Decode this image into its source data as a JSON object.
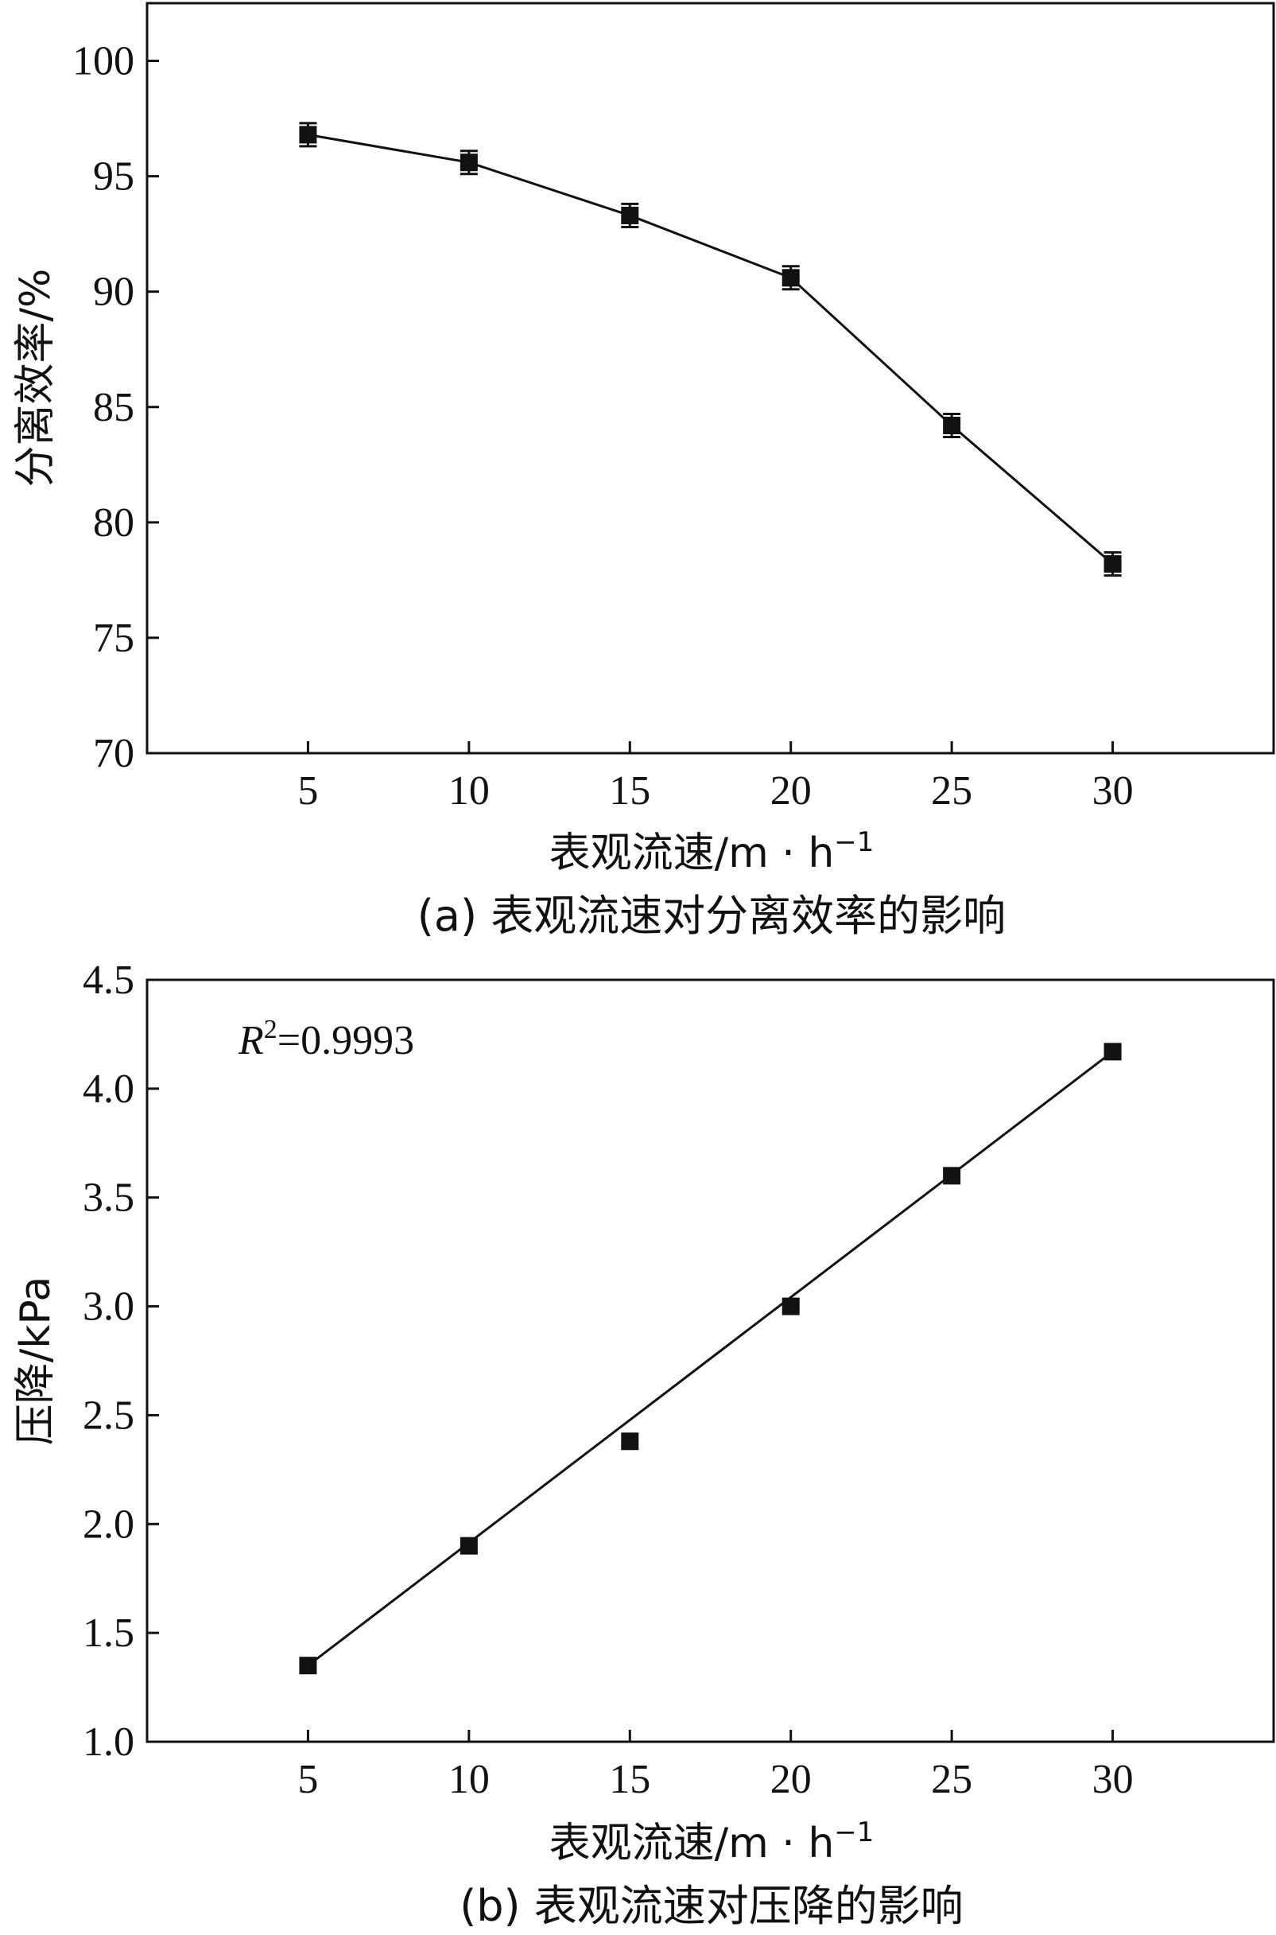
{
  "chart_data": [
    {
      "type": "line",
      "panel": "a",
      "caption": "(a) 表观流速对分离效率的影响",
      "xlabel": "表观流速/m · h",
      "xlabel_superscript": "−1",
      "ylabel": "分离效率/%",
      "xlim": [
        0,
        35
      ],
      "ylim": [
        70,
        102.5
      ],
      "xticks": [
        5,
        10,
        15,
        20,
        25,
        30
      ],
      "yticks": [
        70,
        75,
        80,
        85,
        90,
        95,
        100
      ],
      "grid": false,
      "marker": "square",
      "error_bars": true,
      "series": [
        {
          "x": [
            5,
            10,
            15,
            20,
            25,
            30
          ],
          "values": [
            96.8,
            95.6,
            93.3,
            90.6,
            84.2,
            78.2
          ],
          "errors": [
            0.5,
            0.5,
            0.5,
            0.5,
            0.5,
            0.5
          ]
        }
      ]
    },
    {
      "type": "scatter",
      "panel": "b",
      "caption": "(b) 表观流速对压降的影响",
      "xlabel": "表观流速/m · h",
      "xlabel_superscript": "−1",
      "ylabel": "压降/kPa",
      "xlim": [
        0,
        35
      ],
      "ylim": [
        1.0,
        4.5
      ],
      "xticks": [
        5,
        10,
        15,
        20,
        25,
        30
      ],
      "yticks": [
        "1.0",
        "1.5",
        "2.0",
        "2.5",
        "3.0",
        "3.5",
        "4.0",
        "4.5"
      ],
      "grid": false,
      "marker": "square",
      "annotation": {
        "symbol": "R",
        "superscript": "2",
        "text": "=0.9993"
      },
      "series": [
        {
          "x": [
            5,
            10,
            15,
            20,
            25,
            30
          ],
          "values": [
            1.35,
            1.9,
            2.38,
            3.0,
            3.6,
            4.17
          ]
        }
      ],
      "fit_line": {
        "x": [
          5,
          30
        ],
        "y": [
          1.35,
          4.17
        ]
      }
    }
  ]
}
